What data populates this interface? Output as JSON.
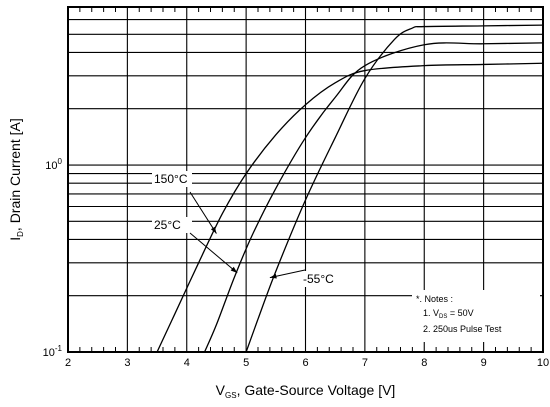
{
  "chart_data": {
    "type": "line",
    "xlabel": "V_GS, Gate-Source Voltage [V]",
    "ylabel": "I_D, Drain Current [A]",
    "xlim": [
      2,
      10
    ],
    "ylim": [
      0.1,
      7
    ],
    "yscale": "log",
    "grid": true,
    "x_ticks": [
      "2",
      "3",
      "4",
      "5",
      "6",
      "7",
      "8",
      "9",
      "10"
    ],
    "y_ticks": [
      {
        "value": 0.1,
        "mantissa": "10",
        "exp": "-1"
      },
      {
        "value": 1,
        "mantissa": "10",
        "exp": "0"
      }
    ],
    "series": [
      {
        "name": "150°C",
        "x": [
          3.5,
          3.8,
          4.2,
          4.6,
          5.0,
          5.5,
          6.0,
          6.5,
          7.0,
          8.0,
          9.0,
          10.0
        ],
        "y": [
          0.1,
          0.16,
          0.3,
          0.55,
          0.9,
          1.45,
          2.1,
          2.75,
          3.2,
          3.4,
          3.45,
          3.5
        ]
      },
      {
        "name": "25°C",
        "x": [
          4.3,
          4.5,
          4.8,
          5.1,
          5.5,
          6.0,
          6.5,
          7.0,
          8.0,
          9.0,
          10.0
        ],
        "y": [
          0.1,
          0.14,
          0.25,
          0.42,
          0.75,
          1.4,
          2.3,
          3.4,
          4.4,
          4.45,
          4.5
        ]
      },
      {
        "name": "-55°C",
        "x": [
          5.0,
          5.2,
          5.5,
          6.0,
          6.5,
          7.0,
          7.5,
          7.8,
          8.0,
          9.0,
          10.0
        ],
        "y": [
          0.1,
          0.15,
          0.27,
          0.65,
          1.4,
          2.9,
          4.7,
          5.4,
          5.5,
          5.55,
          5.6
        ]
      }
    ],
    "notes": {
      "title": "*. Notes :",
      "line1_prefix": "1. V",
      "line1_sub": "DS",
      "line1_suffix": " = 50V",
      "line2": "2. 250us Pulse Test"
    }
  }
}
